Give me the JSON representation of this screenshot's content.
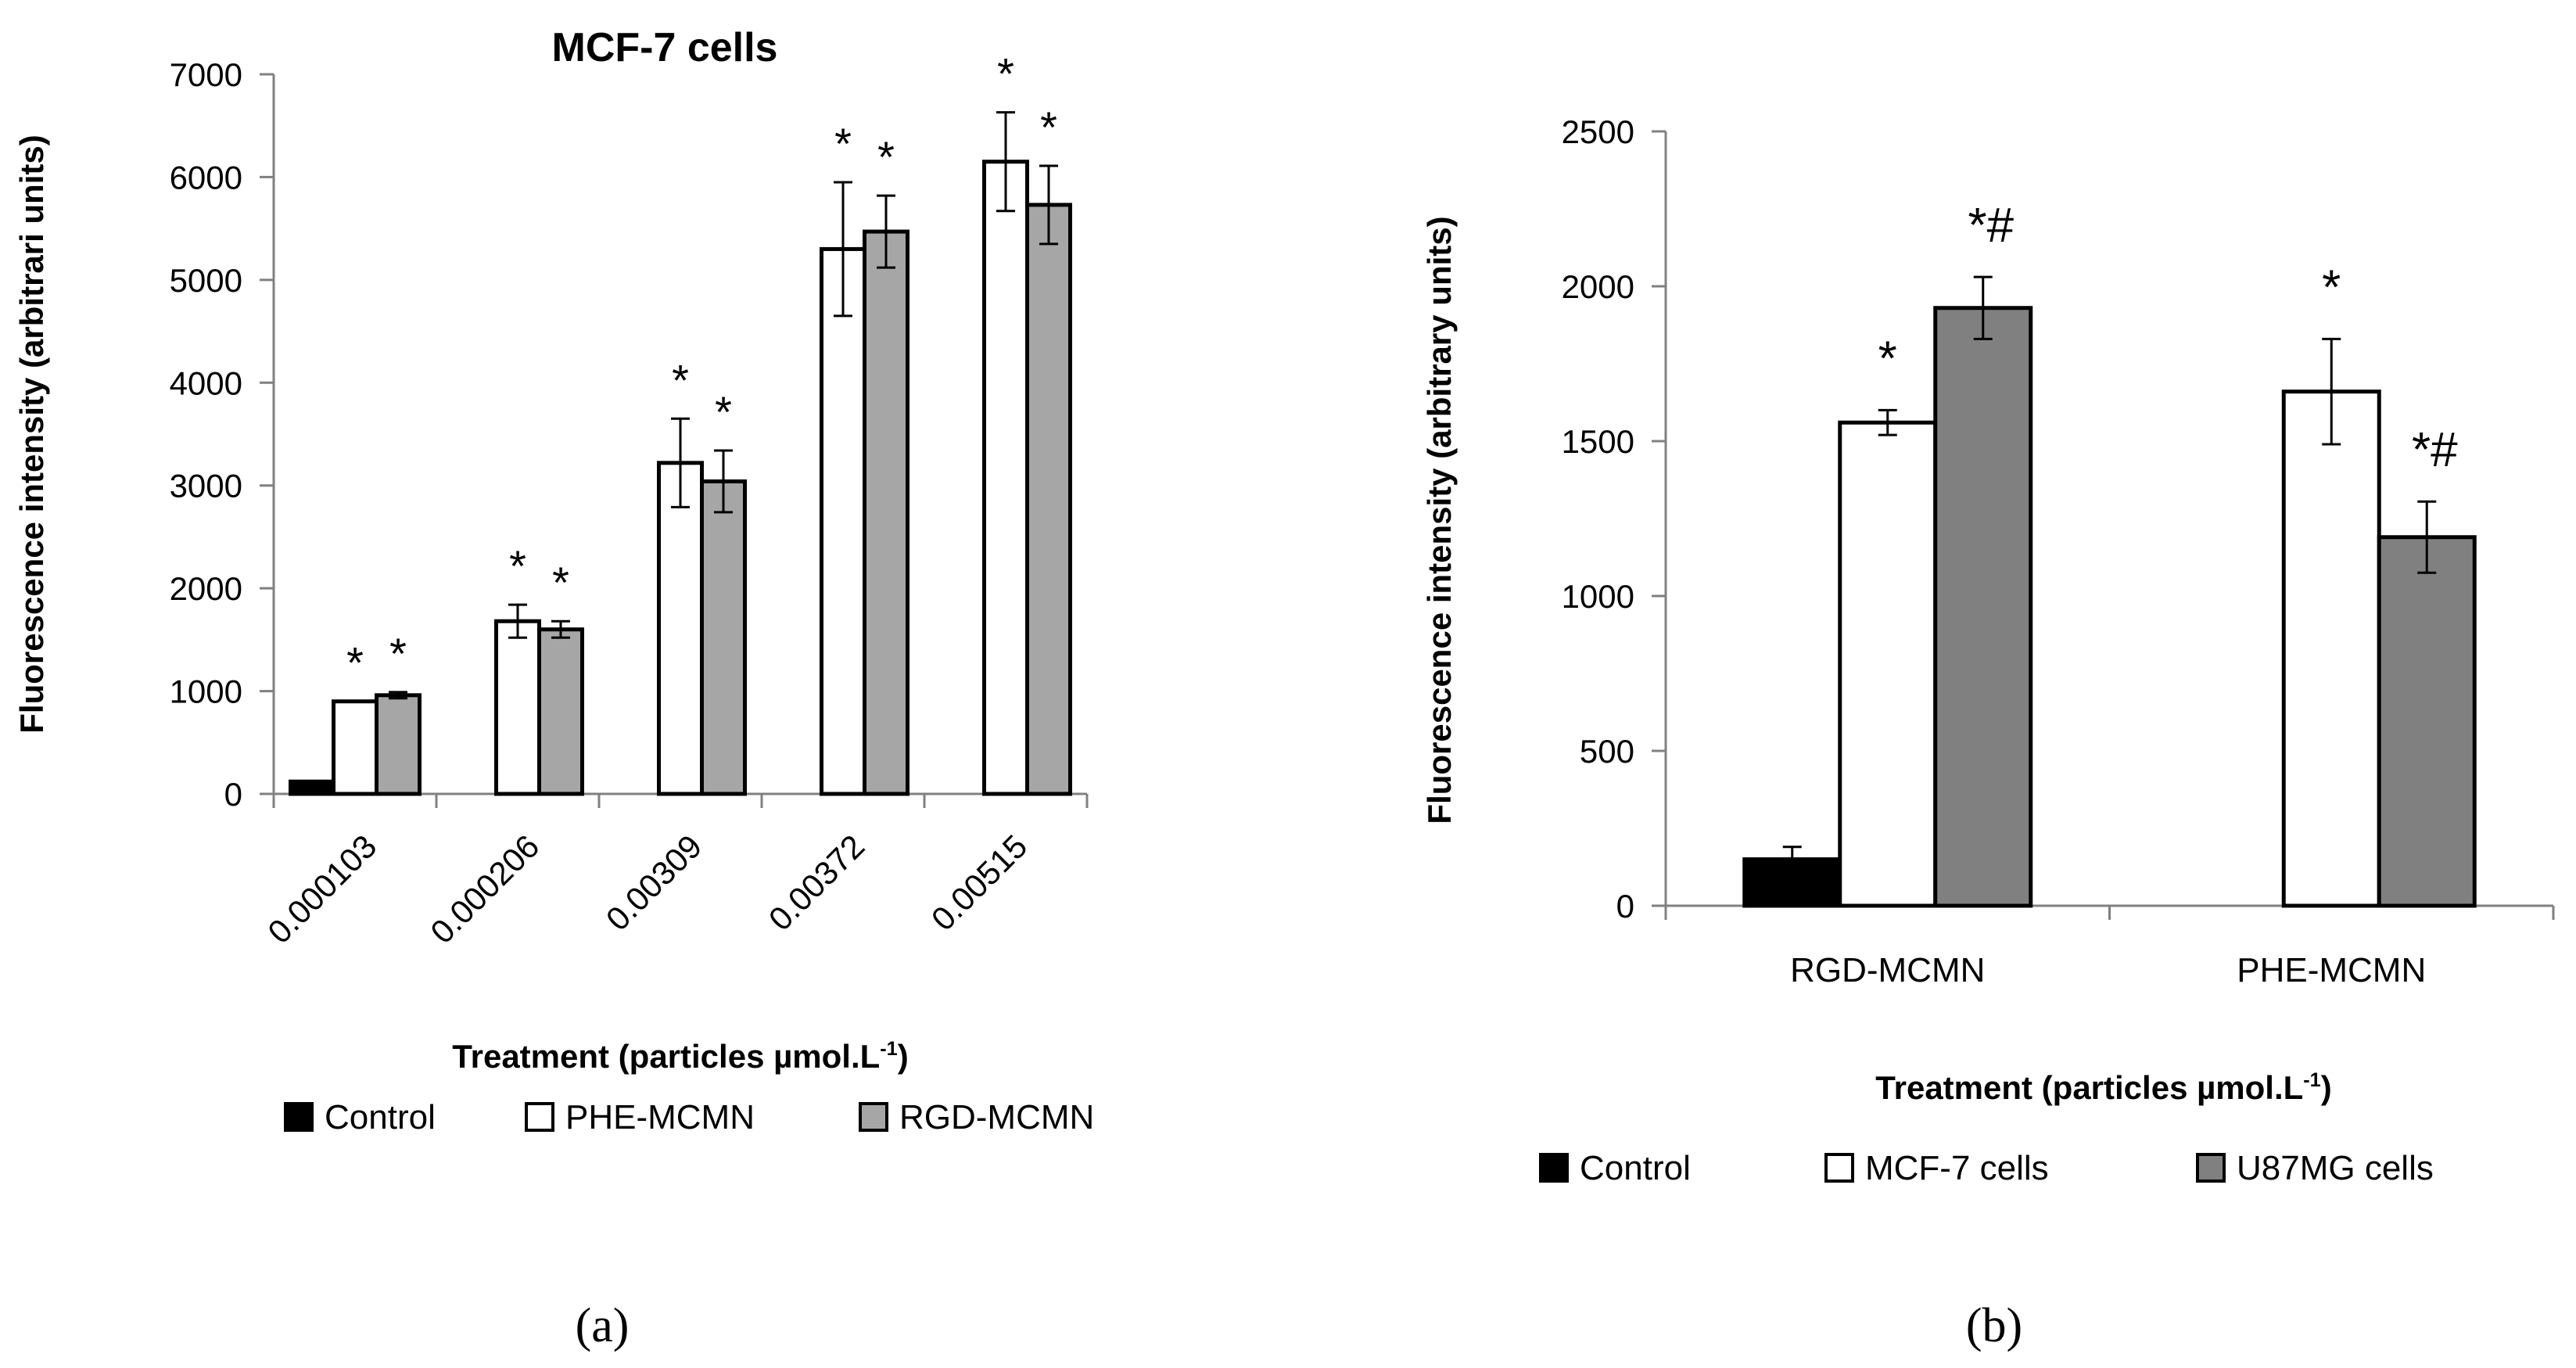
{
  "chart_data": [
    {
      "panel_id": "a",
      "type": "bar",
      "title": "MCF-7 cells",
      "xlabel": "Treatment (particles µmol.L",
      "xlabel_sup": "-1",
      "xlabel_end": ")",
      "ylabel": "Fluorescence intensity (arbitrari units)",
      "ylim": [
        0,
        7000
      ],
      "yticks": [
        0,
        1000,
        2000,
        3000,
        4000,
        5000,
        6000,
        7000
      ],
      "ytick_labels": [
        "0",
        "1000",
        "2000",
        "3000",
        "4000",
        "5000",
        "6000",
        "7000"
      ],
      "categories": [
        "0.000103",
        "0.000206",
        "0.00309",
        "0.00372",
        "0.00515"
      ],
      "series": [
        {
          "name": "Control",
          "color": "#000000",
          "values": [
            120,
            null,
            null,
            null,
            null
          ],
          "errors": [
            0,
            null,
            null,
            null,
            null
          ],
          "marks": [
            "",
            null,
            null,
            null,
            null
          ]
        },
        {
          "name": "PHE-MCMN",
          "color": "#ffffff",
          "values": [
            900,
            1680,
            3220,
            5300,
            6150
          ],
          "errors": [
            0,
            160,
            430,
            650,
            480
          ],
          "marks": [
            "*",
            "*",
            "*",
            "*",
            "*"
          ]
        },
        {
          "name": "RGD-MCMN",
          "color": "#a6a6a6",
          "values": [
            960,
            1600,
            3040,
            5470,
            5730
          ],
          "errors": [
            30,
            80,
            300,
            350,
            380
          ],
          "marks": [
            "*",
            "*",
            "*",
            "*",
            "*"
          ]
        }
      ],
      "legend_position": "bottom",
      "panel_label": "(a)"
    },
    {
      "panel_id": "b",
      "type": "bar",
      "title": "",
      "xlabel": "Treatment (particles µmol.L",
      "xlabel_sup": "-1",
      "xlabel_end": ")",
      "ylabel": "Fluorescence intensity (arbitrary units)",
      "ylim": [
        0,
        2500
      ],
      "yticks": [
        0,
        500,
        1000,
        1500,
        2000,
        2500
      ],
      "ytick_labels": [
        "0",
        "500",
        "1000",
        "1500",
        "2000",
        "2500"
      ],
      "categories": [
        "RGD-MCMN",
        "PHE-MCMN"
      ],
      "series": [
        {
          "name": "Control",
          "color": "#000000",
          "values": [
            150,
            null
          ],
          "errors": [
            40,
            null
          ],
          "marks": [
            "",
            null
          ]
        },
        {
          "name": "MCF-7 cells",
          "color": "#ffffff",
          "values": [
            1560,
            1660
          ],
          "errors": [
            40,
            170
          ],
          "marks": [
            "*",
            "*"
          ]
        },
        {
          "name": "U87MG cells",
          "color": "#808080",
          "values": [
            1930,
            1190
          ],
          "errors": [
            100,
            115
          ],
          "marks": [
            "*#",
            "*#"
          ]
        }
      ],
      "legend_position": "bottom",
      "panel_label": "(b)"
    }
  ]
}
